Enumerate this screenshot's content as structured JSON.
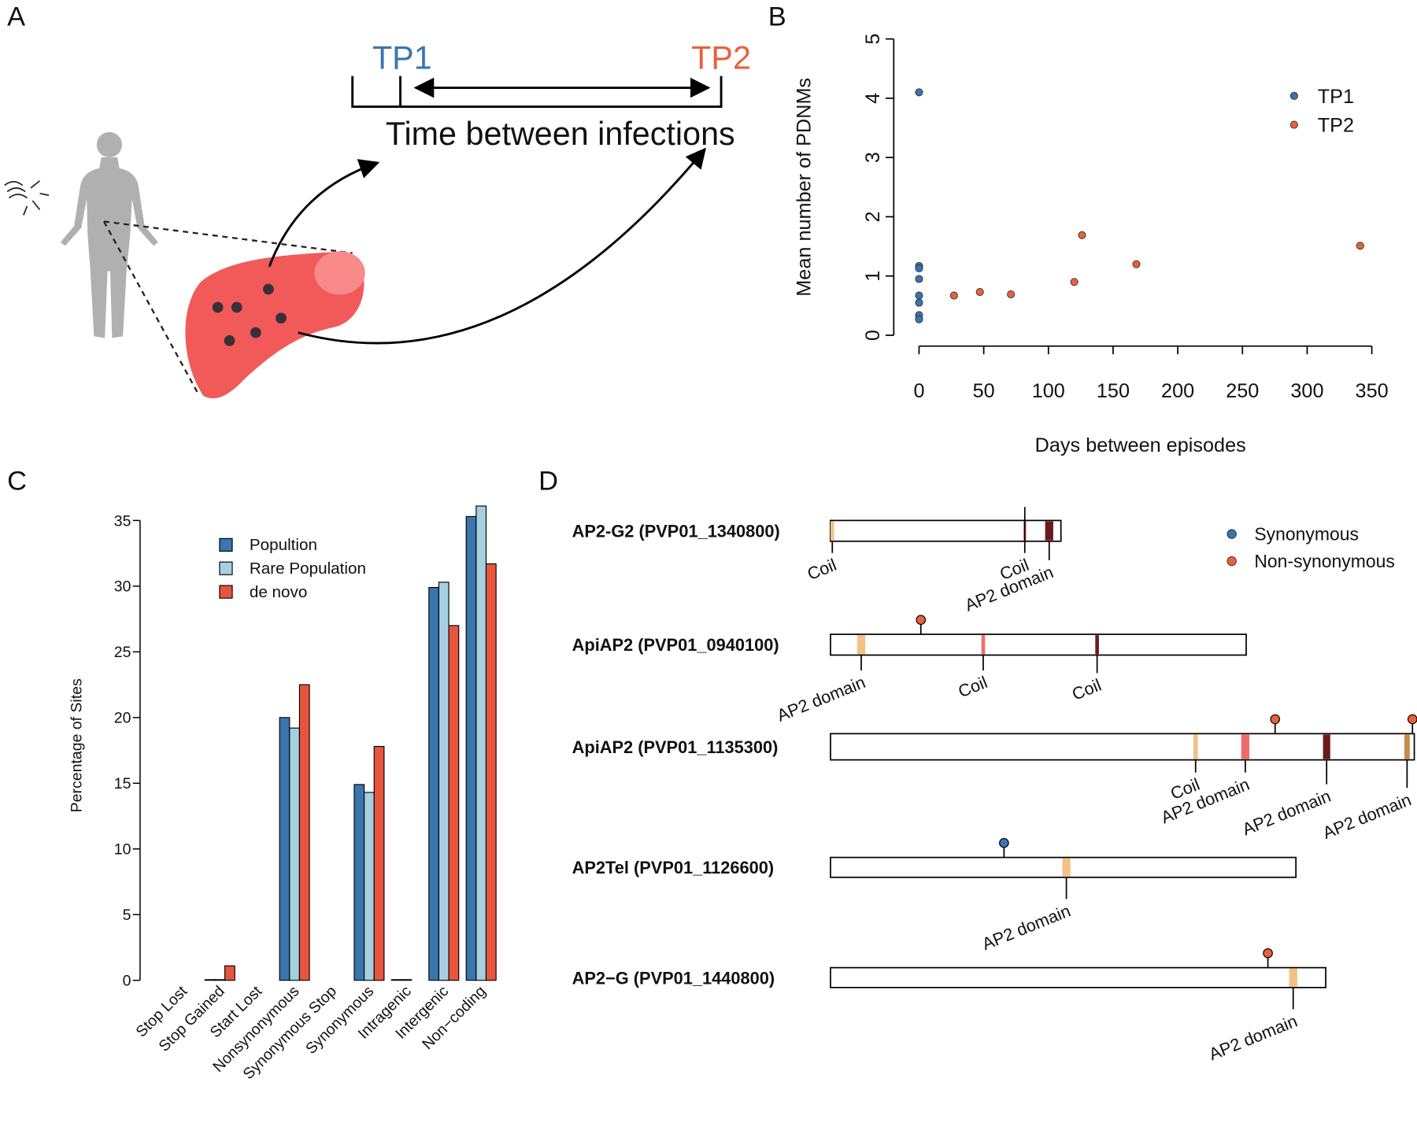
{
  "panel_labels": [
    "A",
    "B",
    "C",
    "D"
  ],
  "diagram_a": {
    "tp1": "TP1",
    "tp2": "TP2",
    "caption": "Time between infections"
  },
  "chart_data": [
    {
      "type": "scatter",
      "xlabel": "Days between episodes",
      "ylabel": "Mean number of PDNMs",
      "xlim": [
        0,
        350
      ],
      "ylim": [
        0,
        5
      ],
      "xticks": [
        0,
        50,
        100,
        150,
        200,
        250,
        300,
        350
      ],
      "yticks": [
        0,
        1,
        2,
        3,
        4,
        5
      ],
      "legend": "top-right",
      "series": [
        {
          "name": "TP1",
          "color": "#3a74b0",
          "x": [
            0,
            0,
            0,
            0,
            0,
            0,
            0,
            0
          ],
          "values": [
            4.1,
            1.17,
            1.13,
            0.95,
            0.67,
            0.55,
            0.34,
            0.27
          ]
        },
        {
          "name": "TP2",
          "color": "#e8613c",
          "x": [
            27,
            47,
            71,
            120,
            126,
            168,
            341
          ],
          "values": [
            0.67,
            0.73,
            0.69,
            0.9,
            1.69,
            1.2,
            1.51
          ]
        }
      ]
    },
    {
      "type": "bar",
      "ylabel": "Percentage of Sites",
      "categories": [
        "Stop Lost",
        "Stop Gained",
        "Start Lost",
        "Nonsynonymous",
        "Synonymous Stop",
        "Synonymous",
        "Intragenic",
        "Intergenic",
        "Non−coding"
      ],
      "ylim": [
        0,
        35
      ],
      "yticks": [
        0,
        5,
        10,
        15,
        20,
        25,
        30,
        35
      ],
      "legend": "top-left",
      "series": [
        {
          "name": "Popultion",
          "color": "#3b75ae",
          "values": [
            0,
            0.05,
            0,
            20.0,
            0,
            14.9,
            0.05,
            29.9,
            35.3
          ]
        },
        {
          "name": "Rare Population",
          "color": "#a6d0df",
          "values": [
            0,
            0.05,
            0,
            19.2,
            0,
            14.3,
            0.05,
            30.3,
            36.1
          ]
        },
        {
          "name": "de novo",
          "color": "#e8553f",
          "values": [
            0,
            1.1,
            0,
            22.5,
            0,
            17.8,
            0,
            27.0,
            31.7
          ]
        }
      ]
    }
  ],
  "diagram_d": {
    "mutation_types": [
      {
        "label": "Synonymous",
        "color": "#3a74b0"
      },
      {
        "label": "Non-synonymous",
        "color": "#e8613c"
      }
    ],
    "genes": [
      {
        "name": "AP2-G2 (PVP01_1340800)",
        "features": [
          "Coil",
          "Coil",
          "AP2 domain"
        ]
      },
      {
        "name": "ApiAP2 (PVP01_0940100)",
        "features": [
          "AP2 domain",
          "Coil",
          "Coil"
        ]
      },
      {
        "name": "ApiAP2 (PVP01_1135300)",
        "features": [
          "Coil",
          "AP2 domain",
          "AP2 domain",
          "AP2 domain"
        ]
      },
      {
        "name": "AP2Tel (PVP01_1126600)",
        "features": [
          "AP2 domain"
        ]
      },
      {
        "name": "AP2−G (PVP01_1440800)",
        "features": [
          "AP2 domain"
        ]
      }
    ]
  }
}
